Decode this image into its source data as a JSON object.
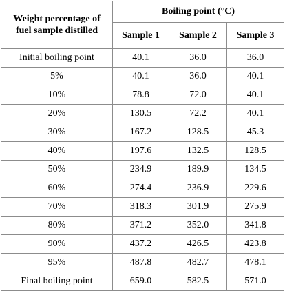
{
  "header": {
    "first_col": [
      "Weight percentage of",
      "fuel sample distilled"
    ],
    "group": "Boiling point (°C)",
    "samples": [
      "Sample 1",
      "Sample 2",
      "Sample 3"
    ]
  },
  "rows": [
    {
      "label": "Initial boiling point",
      "values": [
        "40.1",
        "36.0",
        "36.0"
      ]
    },
    {
      "label": "5%",
      "values": [
        "40.1",
        "36.0",
        "40.1"
      ]
    },
    {
      "label": "10%",
      "values": [
        "78.8",
        "72.0",
        "40.1"
      ]
    },
    {
      "label": "20%",
      "values": [
        "130.5",
        "72.2",
        "40.1"
      ]
    },
    {
      "label": "30%",
      "values": [
        "167.2",
        "128.5",
        "45.3"
      ]
    },
    {
      "label": "40%",
      "values": [
        "197.6",
        "132.5",
        "128.5"
      ]
    },
    {
      "label": "50%",
      "values": [
        "234.9",
        "189.9",
        "134.5"
      ]
    },
    {
      "label": "60%",
      "values": [
        "274.4",
        "236.9",
        "229.6"
      ]
    },
    {
      "label": "70%",
      "values": [
        "318.3",
        "301.9",
        "275.9"
      ]
    },
    {
      "label": "80%",
      "values": [
        "371.2",
        "352.0",
        "341.8"
      ]
    },
    {
      "label": "90%",
      "values": [
        "437.2",
        "426.5",
        "423.8"
      ]
    },
    {
      "label": "95%",
      "values": [
        "487.8",
        "482.7",
        "478.1"
      ]
    },
    {
      "label": "Final boiling point",
      "values": [
        "659.0",
        "582.5",
        "571.0"
      ]
    }
  ]
}
